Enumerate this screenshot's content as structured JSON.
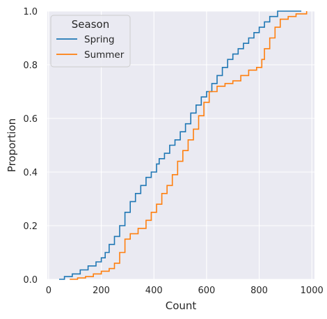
{
  "chart_data": {
    "type": "line",
    "subtype": "ecdf-step",
    "xlabel": "Count",
    "ylabel": "Proportion",
    "xlim": [
      -5,
      1010
    ],
    "ylim": [
      0,
      1
    ],
    "xticks": [
      0,
      200,
      400,
      600,
      800,
      1000
    ],
    "yticks": [
      0.0,
      0.2,
      0.4,
      0.6,
      0.8,
      1.0
    ],
    "xtick_labels": [
      "0",
      "200",
      "400",
      "600",
      "800",
      "1000"
    ],
    "ytick_labels": [
      "0.0",
      "0.2",
      "0.4",
      "0.6",
      "0.8",
      "1.0"
    ],
    "grid": true,
    "background": "#eaeaf2",
    "legend": {
      "title": "Season",
      "position": "top-left"
    },
    "series": [
      {
        "name": "Spring",
        "color": "#1f77b4",
        "points": [
          [
            40,
            0.0
          ],
          [
            60,
            0.01
          ],
          [
            90,
            0.02
          ],
          [
            120,
            0.035
          ],
          [
            150,
            0.05
          ],
          [
            180,
            0.065
          ],
          [
            200,
            0.08
          ],
          [
            215,
            0.1
          ],
          [
            230,
            0.13
          ],
          [
            250,
            0.16
          ],
          [
            270,
            0.2
          ],
          [
            290,
            0.25
          ],
          [
            310,
            0.29
          ],
          [
            330,
            0.32
          ],
          [
            350,
            0.35
          ],
          [
            370,
            0.38
          ],
          [
            390,
            0.4
          ],
          [
            410,
            0.43
          ],
          [
            420,
            0.45
          ],
          [
            440,
            0.47
          ],
          [
            460,
            0.5
          ],
          [
            480,
            0.52
          ],
          [
            500,
            0.55
          ],
          [
            520,
            0.58
          ],
          [
            540,
            0.62
          ],
          [
            560,
            0.65
          ],
          [
            580,
            0.68
          ],
          [
            600,
            0.7
          ],
          [
            620,
            0.73
          ],
          [
            640,
            0.76
          ],
          [
            660,
            0.79
          ],
          [
            680,
            0.82
          ],
          [
            700,
            0.84
          ],
          [
            720,
            0.86
          ],
          [
            740,
            0.88
          ],
          [
            760,
            0.9
          ],
          [
            780,
            0.92
          ],
          [
            800,
            0.94
          ],
          [
            820,
            0.96
          ],
          [
            840,
            0.98
          ],
          [
            870,
            1.0
          ],
          [
            960,
            1.0
          ]
        ]
      },
      {
        "name": "Summer",
        "color": "#ff7f0e",
        "points": [
          [
            80,
            0.0
          ],
          [
            110,
            0.005
          ],
          [
            140,
            0.01
          ],
          [
            170,
            0.02
          ],
          [
            200,
            0.03
          ],
          [
            230,
            0.04
          ],
          [
            250,
            0.06
          ],
          [
            270,
            0.1
          ],
          [
            290,
            0.15
          ],
          [
            310,
            0.17
          ],
          [
            340,
            0.19
          ],
          [
            370,
            0.22
          ],
          [
            390,
            0.25
          ],
          [
            410,
            0.28
          ],
          [
            430,
            0.32
          ],
          [
            450,
            0.35
          ],
          [
            470,
            0.39
          ],
          [
            490,
            0.44
          ],
          [
            510,
            0.48
          ],
          [
            530,
            0.52
          ],
          [
            550,
            0.56
          ],
          [
            570,
            0.61
          ],
          [
            590,
            0.66
          ],
          [
            610,
            0.7
          ],
          [
            640,
            0.72
          ],
          [
            670,
            0.73
          ],
          [
            700,
            0.74
          ],
          [
            730,
            0.76
          ],
          [
            760,
            0.78
          ],
          [
            790,
            0.79
          ],
          [
            810,
            0.82
          ],
          [
            820,
            0.86
          ],
          [
            840,
            0.9
          ],
          [
            860,
            0.94
          ],
          [
            880,
            0.97
          ],
          [
            910,
            0.98
          ],
          [
            940,
            0.99
          ],
          [
            980,
            1.0
          ]
        ]
      }
    ]
  }
}
